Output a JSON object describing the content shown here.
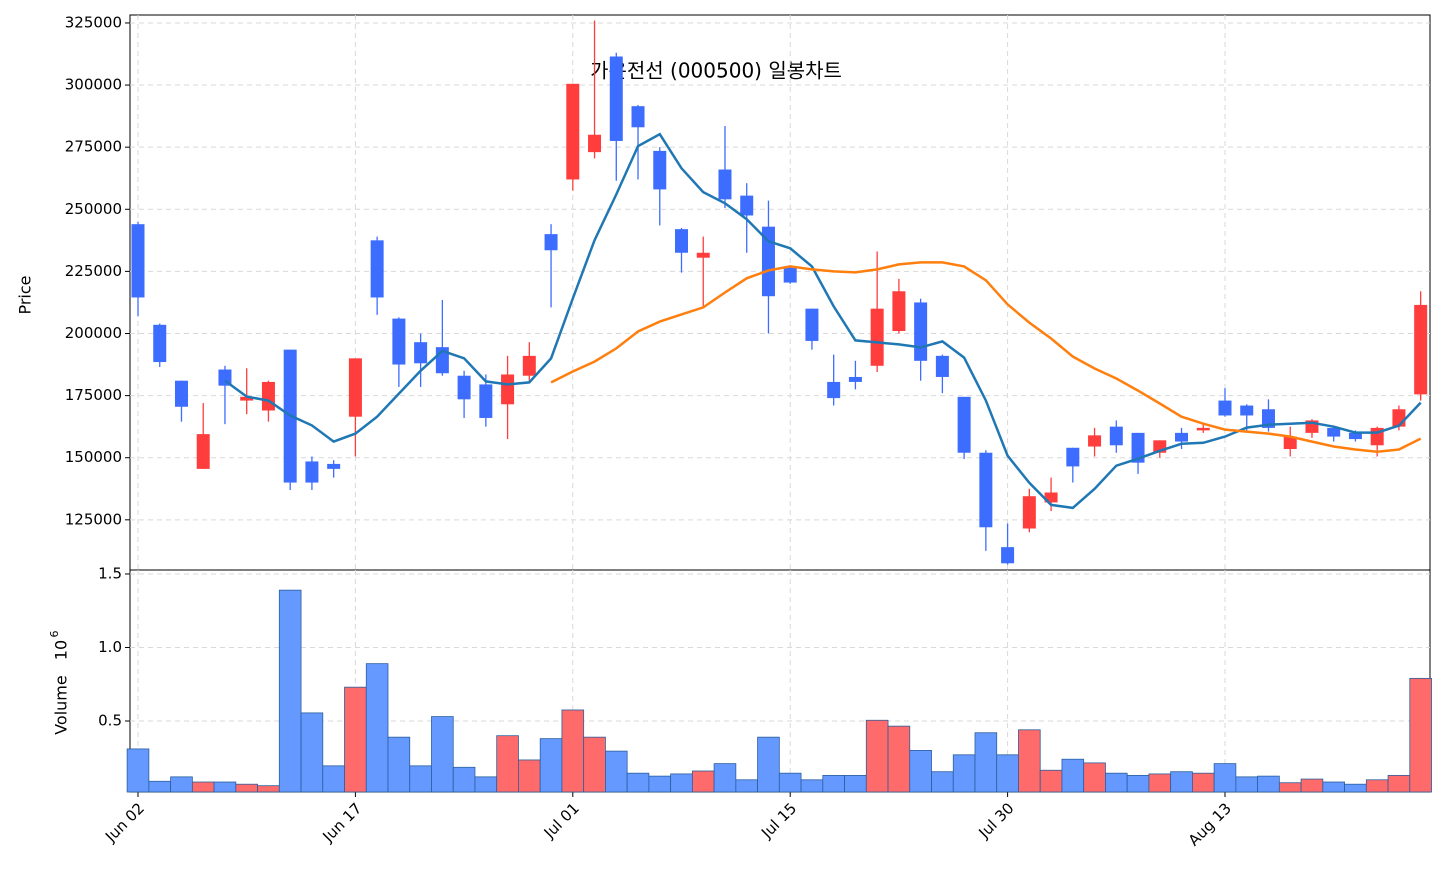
{
  "chart_data": {
    "type": "candlestick",
    "title": "가온전선 (000500) 일봉차트",
    "y_label": "Price",
    "volume_label": "Volume",
    "volume_offset": "10",
    "volume_offset_exp": "6",
    "categories": [
      "Jun 02",
      null,
      null,
      null,
      null,
      null,
      null,
      null,
      null,
      null,
      "Jun 17",
      null,
      null,
      null,
      null,
      null,
      null,
      null,
      null,
      null,
      "Jul 01",
      null,
      null,
      null,
      null,
      null,
      null,
      null,
      null,
      null,
      "Jul 15",
      null,
      null,
      null,
      null,
      null,
      null,
      null,
      null,
      null,
      "Jul 30",
      null,
      null,
      null,
      null,
      null,
      null,
      null,
      null,
      null,
      "Aug 13",
      null,
      null,
      null,
      null,
      null,
      null,
      null,
      null,
      null
    ],
    "open": [
      244000,
      203500,
      181000,
      145500,
      185500,
      173000,
      169000,
      193500,
      148500,
      147500,
      166500,
      237500,
      206000,
      196500,
      194500,
      183000,
      179500,
      171500,
      183000,
      240000,
      262000,
      273000,
      311500,
      291500,
      273500,
      242000,
      230500,
      266000,
      255500,
      243000,
      227000,
      210000,
      180500,
      182500,
      187000,
      201000,
      212500,
      191000,
      174500,
      152000,
      114000,
      121500,
      132000,
      154000,
      154500,
      162500,
      160000,
      152000,
      160000,
      161000,
      173000,
      171000,
      169500,
      153500,
      160000,
      162000,
      160000,
      155000,
      162500,
      175500
    ],
    "high": [
      245000,
      204000,
      181000,
      172000,
      187000,
      186000,
      181000,
      193500,
      150500,
      149000,
      190000,
      239000,
      206500,
      200000,
      213500,
      185000,
      183500,
      191000,
      196500,
      244000,
      300500,
      326000,
      313000,
      292000,
      275000,
      242500,
      239000,
      283500,
      260500,
      253500,
      227500,
      210000,
      191500,
      189000,
      233000,
      222000,
      214000,
      191500,
      174500,
      153000,
      123500,
      137500,
      142000,
      154000,
      162000,
      165000,
      160000,
      157000,
      162000,
      163500,
      178000,
      171500,
      173500,
      162500,
      165500,
      163000,
      161000,
      162500,
      171000,
      217000
    ],
    "low": [
      207000,
      186500,
      164500,
      145500,
      163500,
      167500,
      164500,
      137000,
      137000,
      142000,
      150500,
      207500,
      178500,
      178500,
      183000,
      166000,
      162500,
      157500,
      180000,
      210500,
      257500,
      270500,
      261500,
      262000,
      243500,
      224500,
      210500,
      250500,
      232500,
      200000,
      220000,
      193500,
      171000,
      177500,
      184500,
      200000,
      181000,
      176000,
      149500,
      112500,
      107000,
      120000,
      128500,
      140000,
      150500,
      152000,
      143500,
      150000,
      153500,
      160000,
      166500,
      160000,
      160500,
      150500,
      158000,
      156500,
      156500,
      150500,
      161000,
      173000
    ],
    "close": [
      214500,
      188500,
      170500,
      159500,
      179000,
      174500,
      180500,
      140000,
      140000,
      145500,
      190000,
      214500,
      187500,
      188000,
      184000,
      173500,
      166000,
      183500,
      191000,
      233500,
      300500,
      280000,
      277500,
      283000,
      258000,
      232500,
      232500,
      254000,
      247500,
      215000,
      220500,
      197000,
      174000,
      180500,
      210000,
      217000,
      189000,
      182500,
      152000,
      122000,
      107500,
      134500,
      136000,
      146500,
      159000,
      155000,
      148000,
      157000,
      156500,
      162000,
      167000,
      167000,
      162000,
      158500,
      165000,
      158500,
      157500,
      162000,
      169500,
      211500
    ],
    "up_color": "#ff3d3d",
    "down_color": "#3d6dff",
    "volume_up_color": "#ff6b6b",
    "volume_down_color": "#6699ff",
    "series": [
      {
        "color": "#1f77b4",
        "values": [
          null,
          null,
          null,
          null,
          181000,
          174600,
          173000,
          167000,
          163000,
          156500,
          159700,
          166500,
          175800,
          185000,
          193000,
          190000,
          180700,
          179500,
          180300,
          190000,
          214100,
          237500,
          256000,
          275400,
          280200,
          266500,
          256900,
          252400,
          246000,
          237100,
          234300,
          227000,
          210900,
          197200,
          196400,
          195600,
          194400,
          196800,
          190300,
          173000,
          150800,
          139900,
          131000,
          129800,
          137500,
          146800,
          149600,
          152800,
          155600,
          156000,
          158500,
          162100,
          163300,
          163700,
          164100,
          162500,
          160100,
          160100,
          162900,
          172200
        ]
      },
      {
        "color": "#ff7f0e",
        "values": [
          null,
          null,
          null,
          null,
          null,
          null,
          null,
          null,
          null,
          null,
          null,
          null,
          null,
          null,
          null,
          null,
          null,
          null,
          null,
          180300,
          184700,
          188700,
          194000,
          200800,
          204800,
          207700,
          210500,
          216500,
          222200,
          225400,
          227000,
          225800,
          225000,
          224600,
          225800,
          227800,
          228600,
          228600,
          227000,
          221400,
          211700,
          204400,
          198000,
          190700,
          185900,
          181900,
          177000,
          171800,
          166500,
          163700,
          161300,
          160500,
          159700,
          158500,
          156500,
          154500,
          153300,
          152400,
          153300,
          157700
        ]
      }
    ],
    "volume": [
      0.31,
      0.09,
      0.12,
      0.085,
      0.085,
      0.07,
      0.06,
      1.39,
      0.555,
      0.195,
      0.73,
      0.89,
      0.39,
      0.195,
      0.53,
      0.185,
      0.12,
      0.4,
      0.235,
      0.38,
      0.575,
      0.39,
      0.295,
      0.145,
      0.125,
      0.14,
      0.16,
      0.21,
      0.1,
      0.39,
      0.145,
      0.1,
      0.13,
      0.13,
      0.505,
      0.465,
      0.3,
      0.155,
      0.27,
      0.42,
      0.27,
      0.44,
      0.165,
      0.24,
      0.215,
      0.145,
      0.13,
      0.14,
      0.155,
      0.145,
      0.21,
      0.12,
      0.125,
      0.08,
      0.105,
      0.085,
      0.07,
      0.1,
      0.13,
      0.79
    ],
    "ylim": [
      104800,
      328200
    ],
    "yticks": [
      125000,
      150000,
      175000,
      200000,
      225000,
      250000,
      275000,
      300000,
      325000
    ],
    "volume_ylim": [
      0.017,
      1.527
    ],
    "volume_yticks": [
      0.5,
      {
        "value": 1,
        "label": "1.0"
      },
      {
        "value": 1.5,
        "label": "1.5"
      }
    ],
    "grid": true
  }
}
